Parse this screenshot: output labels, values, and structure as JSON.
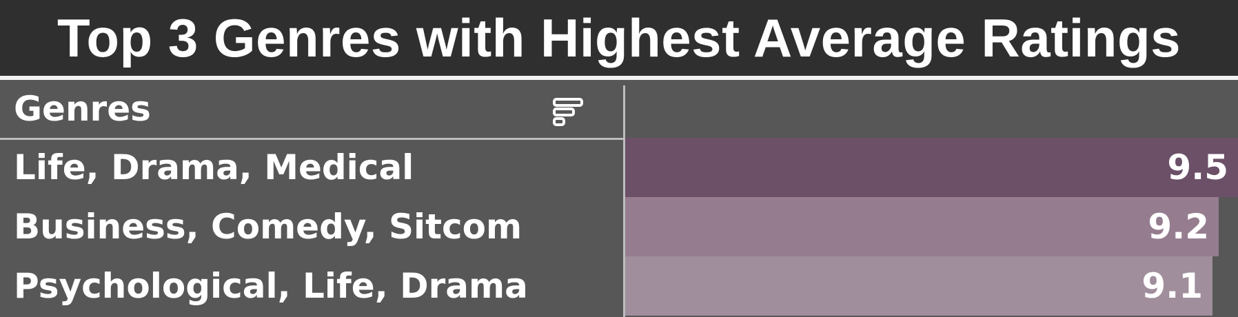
{
  "title": "Top 3 Genres with Highest Average Ratings",
  "table": {
    "header_label": "Genres",
    "sort_icon": "sort-icon"
  },
  "colors": {
    "background": "#2f2f2f",
    "table_bg": "#575757",
    "row_colors": [
      "#6b5068",
      "#957d8f",
      "#a08e9c"
    ]
  },
  "chart_data": {
    "type": "table",
    "title": "Top 3 Genres with Highest Average Ratings",
    "columns": [
      "Genres",
      ""
    ],
    "categories": [
      "Life, Drama, Medical",
      "Business, Comedy, Sitcom",
      "Psychological, Life, Drama"
    ],
    "values": [
      9.5,
      9.2,
      9.1
    ],
    "value_labels": [
      "9.5",
      "9.2",
      "9.1"
    ]
  }
}
